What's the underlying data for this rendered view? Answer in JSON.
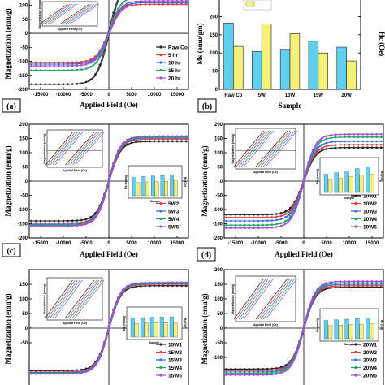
{
  "colors": {
    "s1": "#222222",
    "s2": "#e8403a",
    "s3": "#3b6fe0",
    "s4": "#22a56a",
    "s5": "#a24fd3",
    "bar_ms": "#5fd0ef",
    "bar_hc": "#f4f078"
  },
  "chart_data": [
    {
      "type": "line",
      "panel_label": "(a)",
      "xlabel": "Applied Field (Oe)",
      "ylabel": "Magnetization (emu/g)",
      "xlim": [
        -17500,
        17500
      ],
      "ylim": [
        -200,
        125
      ],
      "xticks": [
        -15000,
        -10000,
        -5000,
        0,
        5000,
        10000,
        15000
      ],
      "yticks": [
        -200,
        -150,
        -100,
        -50,
        0,
        50,
        100
      ],
      "series": [
        {
          "name": "Raw Co",
          "ms": 182,
          "hc": 118
        },
        {
          "name": "5 hr",
          "ms": 104,
          "hc": 180
        },
        {
          "name": "10 hr",
          "ms": 110,
          "hc": 153
        },
        {
          "name": "15 hr",
          "ms": 132,
          "hc": 100
        },
        {
          "name": "20 hr",
          "ms": 116,
          "hc": 78
        }
      ],
      "inset": {
        "xlabel": "Applied Field (Oe)",
        "ylabel": "Magnetization (emu/g)"
      }
    },
    {
      "type": "bar",
      "panel_label": "(b)",
      "xlabel": "Sample",
      "ylabel": "Ms (emu/gm)",
      "ylabel_right": "Hc (Oe)",
      "categories": [
        "Raw Co",
        "5W",
        "10W",
        "15W",
        "20W"
      ],
      "series": [
        {
          "name": "Ms",
          "values": [
            182,
            104,
            110,
            132,
            116
          ]
        },
        {
          "name": "Hc",
          "values": [
            118,
            180,
            153,
            100,
            78
          ]
        }
      ],
      "ylim": [
        0,
        250
      ],
      "yticks": [
        0,
        50,
        100,
        150,
        200,
        250
      ]
    },
    {
      "type": "line",
      "panel_label": "(c)",
      "xlabel": "Applied Field (Oe)",
      "ylabel": "Magnetization (emu/g)",
      "xlim": [
        -17500,
        17500
      ],
      "ylim": [
        -200,
        200
      ],
      "xticks": [
        -15000,
        -10000,
        -5000,
        0,
        5000,
        10000,
        15000
      ],
      "yticks": [
        -200,
        -150,
        -100,
        -50,
        0,
        50,
        100,
        150,
        200
      ],
      "series": [
        {
          "name": "5W1",
          "ms": 140
        },
        {
          "name": "5W2",
          "ms": 148
        },
        {
          "name": "5W3",
          "ms": 152
        },
        {
          "name": "5W4",
          "ms": 155
        },
        {
          "name": "5W5",
          "ms": 158
        }
      ],
      "inset": {
        "xlabel": "Applied Field (Oe)",
        "ylabel": "Magnetization (emu/g)"
      },
      "inset_bar": {
        "xlabel": "Sample",
        "ylabel": "Ms (emu/g)",
        "ylabel_right": "Hc (Oe)"
      }
    },
    {
      "type": "line",
      "panel_label": "(d)",
      "xlabel": "Applied Field (Oe)",
      "ylabel": "Magnetization (emu/g)",
      "xlim": [
        -17500,
        17500
      ],
      "ylim": [
        -200,
        200
      ],
      "xticks": [
        -15000,
        -10000,
        -5000,
        0,
        5000,
        10000,
        15000
      ],
      "yticks": [
        -200,
        -150,
        -100,
        -50,
        0,
        50,
        100,
        150,
        200
      ],
      "series": [
        {
          "name": "10W1",
          "ms": 118
        },
        {
          "name": "10W2",
          "ms": 128
        },
        {
          "name": "10W3",
          "ms": 140
        },
        {
          "name": "10W4",
          "ms": 155
        },
        {
          "name": "10W5",
          "ms": 165
        }
      ],
      "inset": {
        "xlabel": "Applied Field (Oe)",
        "ylabel": "Magnetization (emu/g)"
      },
      "inset_bar": {
        "xlabel": "Sample",
        "ylabel": "Ms (emu/g)",
        "ylabel_right": "Hc (Oe)"
      }
    },
    {
      "type": "line",
      "panel_label": "",
      "xlabel": "",
      "ylabel": "Magnetization (emu/g)",
      "xlim": [
        -17500,
        17500
      ],
      "ylim": [
        -200,
        200
      ],
      "yticks": [
        -50,
        0,
        50,
        100,
        150
      ],
      "series": [
        {
          "name": "15W1",
          "ms": 145
        },
        {
          "name": "15W2",
          "ms": 150
        },
        {
          "name": "15W3",
          "ms": 152
        },
        {
          "name": "15W4",
          "ms": 154
        },
        {
          "name": "15W5",
          "ms": 156
        }
      ],
      "inset": {
        "xlabel": "Applied Field (Oe)",
        "ylabel": "Magnetization (emu/g)"
      },
      "inset_bar": {
        "xlabel": "Sample",
        "ylabel": "Ms (emu/g)",
        "ylabel_right": "Hc (Oe)"
      }
    },
    {
      "type": "line",
      "panel_label": "",
      "xlabel": "",
      "ylabel": "Magnetization (emu/g)",
      "xlim": [
        -17500,
        17500
      ],
      "ylim": [
        -200,
        200
      ],
      "yticks": [
        -100,
        -50,
        0,
        50,
        100,
        150,
        200
      ],
      "series": [
        {
          "name": "20W1",
          "ms": 140
        },
        {
          "name": "20W2",
          "ms": 145
        },
        {
          "name": "20W3",
          "ms": 150
        },
        {
          "name": "20W4",
          "ms": 155
        },
        {
          "name": "20W5",
          "ms": 160
        }
      ],
      "inset": {
        "xlabel": "Applied Field (Oe)",
        "ylabel": "Magnetization (emu/g)"
      },
      "inset_bar": {
        "xlabel": "Sample",
        "ylabel": "Ms (emu/g)",
        "ylabel_right": "Hc (Oe)"
      }
    }
  ]
}
